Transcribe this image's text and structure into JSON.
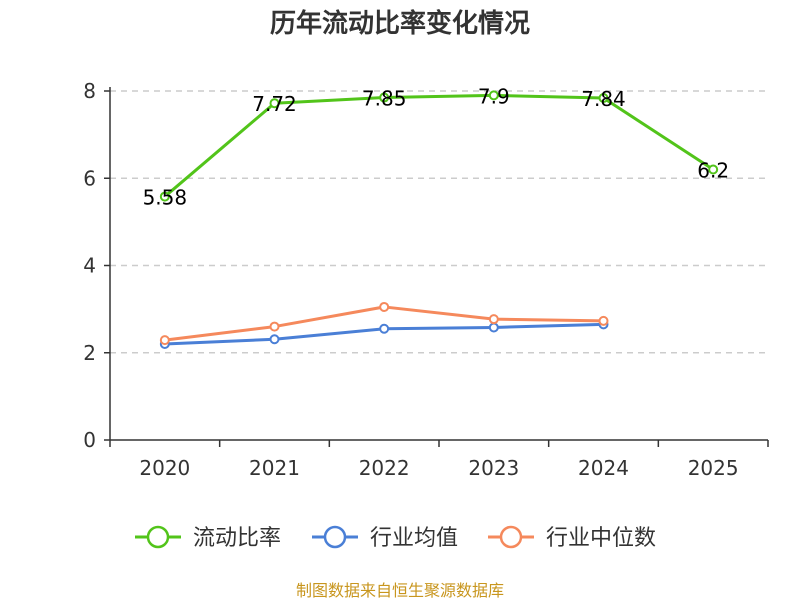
{
  "chart_data": {
    "type": "line",
    "title": "历年流动比率变化情况",
    "categories": [
      "2020",
      "2021",
      "2022",
      "2023",
      "2024",
      "2025"
    ],
    "ylim": [
      0,
      8
    ],
    "yticks": [
      0,
      2,
      4,
      6,
      8
    ],
    "grid": true,
    "legend_position": "bottom",
    "series": [
      {
        "name": "流动比率",
        "color": "#52c41a",
        "values": [
          5.58,
          7.72,
          7.85,
          7.9,
          7.84,
          6.2
        ],
        "labels": [
          "5.58",
          "7.72",
          "7.85",
          "7.9",
          "7.84",
          "6.2"
        ]
      },
      {
        "name": "行业均值",
        "color": "#4a7fd6",
        "values": [
          2.2,
          2.31,
          2.55,
          2.58,
          2.65,
          null
        ]
      },
      {
        "name": "行业中位数",
        "color": "#f5895c",
        "values": [
          2.29,
          2.6,
          3.05,
          2.77,
          2.73,
          null
        ]
      }
    ]
  },
  "footer": {
    "source": "制图数据来自恒生聚源数据库"
  }
}
